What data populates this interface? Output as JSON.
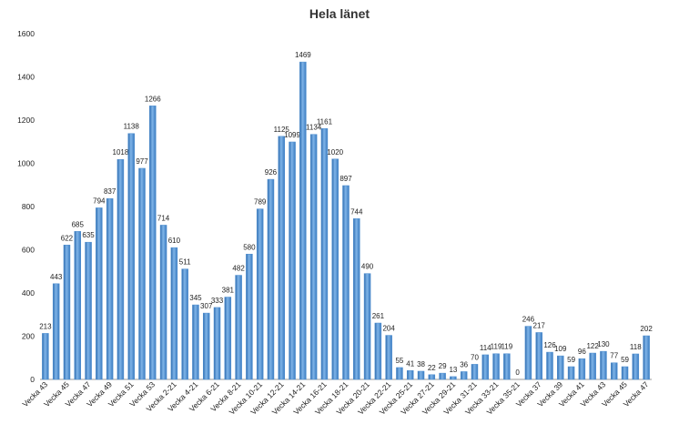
{
  "chart_data": {
    "type": "bar",
    "title": "Hela länet",
    "categories": [
      "Vecka 43",
      null,
      "Vecka 45",
      null,
      "Vecka 47",
      null,
      "Vecka 49",
      null,
      "Vecka 51",
      null,
      "Vecka 53",
      null,
      "Vecka 2-21",
      null,
      "Vecka 4-21",
      null,
      "Vecka 6-21",
      null,
      "Vecka 8-21",
      null,
      "Vecka 10-21",
      null,
      "Vecka 12-21",
      null,
      "Vecka 14-21",
      null,
      "Vecka 16-21",
      null,
      "Vecka 18-21",
      null,
      "Vecka 20-21",
      null,
      "Vecka 22-21",
      null,
      "Vecka 25-21",
      null,
      "Vecka 27-21",
      null,
      "Vecka 29-21",
      null,
      "Vecka 31-21",
      null,
      "Vecka 33-21",
      null,
      "Vecka 35-21",
      null,
      "Vecka 37",
      null,
      "Vecka 39",
      null,
      "Vecka 41",
      null,
      "Vecka 43",
      null,
      "Vecka 45",
      null,
      "Vecka 47"
    ],
    "values": [
      213,
      443,
      622,
      685,
      635,
      794,
      837,
      1018,
      1138,
      977,
      1266,
      714,
      610,
      511,
      345,
      307,
      333,
      381,
      482,
      580,
      789,
      926,
      1125,
      1099,
      1469,
      1134,
      1161,
      1020,
      897,
      744,
      490,
      261,
      204,
      55,
      41,
      38,
      22,
      29,
      13,
      36,
      70,
      114,
      119,
      119,
      0,
      246,
      217,
      126,
      109,
      59,
      96,
      122,
      130,
      77,
      59,
      118,
      202
    ],
    "color": "#4f8fd0",
    "ylim": [
      0,
      1600
    ],
    "yticks": [
      0,
      200,
      400,
      600,
      800,
      1000,
      1200,
      1400,
      1600
    ],
    "grid": false
  }
}
